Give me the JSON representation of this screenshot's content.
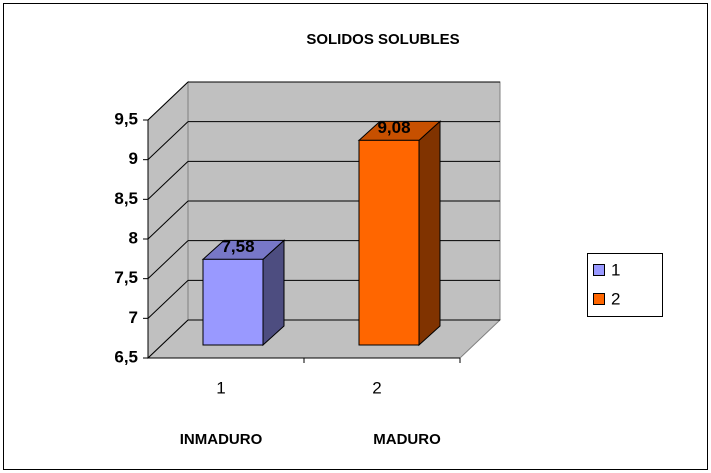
{
  "chart_data": {
    "type": "bar3d",
    "title": "SOLIDOS SOLUBLES",
    "categories": [
      "1",
      "2"
    ],
    "annotations": [
      "INMADURO",
      "MADURO"
    ],
    "series": [
      {
        "name": "1",
        "color": "#9999ff",
        "values": [
          7.58,
          null
        ],
        "value_labels": [
          "7,58",
          null
        ]
      },
      {
        "name": "2",
        "color": "#ff6600",
        "values": [
          null,
          9.08
        ],
        "value_labels": [
          null,
          "9,08"
        ]
      }
    ],
    "ylim": [
      6.5,
      9.5
    ],
    "yticks": [
      {
        "value": 6.5,
        "label": "6,5"
      },
      7,
      {
        "value": 7.5,
        "label": "7,5"
      },
      8,
      {
        "value": 8.5,
        "label": "8,5"
      },
      9,
      {
        "value": 9.5,
        "label": "9,5"
      }
    ],
    "grid": true,
    "legend": "right"
  }
}
